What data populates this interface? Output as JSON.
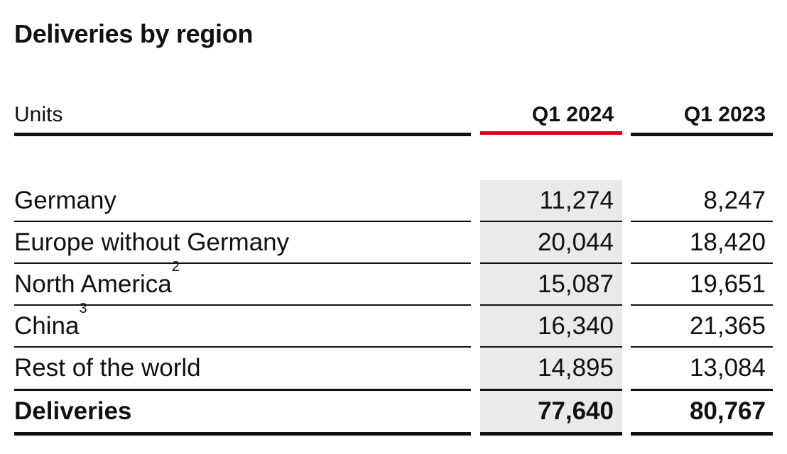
{
  "title": "Deliveries by region",
  "header": {
    "units": "Units",
    "col_current": "Q1 2024",
    "col_previous": "Q1 2023"
  },
  "accent_color": "#d5001c",
  "rows": [
    {
      "label": "Germany",
      "footnote": "",
      "q1_2024": "11,274",
      "q1_2023": "8,247"
    },
    {
      "label": "Europe without Germany",
      "footnote": "",
      "q1_2024": "20,044",
      "q1_2023": "18,420"
    },
    {
      "label": "North America",
      "footnote": "2",
      "q1_2024": "15,087",
      "q1_2023": "19,651"
    },
    {
      "label": "China",
      "footnote": "3",
      "q1_2024": "16,340",
      "q1_2023": "21,365"
    },
    {
      "label": "Rest of the world",
      "footnote": "",
      "q1_2024": "14,895",
      "q1_2023": "13,084"
    }
  ],
  "total": {
    "label": "Deliveries",
    "q1_2024": "77,640",
    "q1_2023": "80,767"
  }
}
